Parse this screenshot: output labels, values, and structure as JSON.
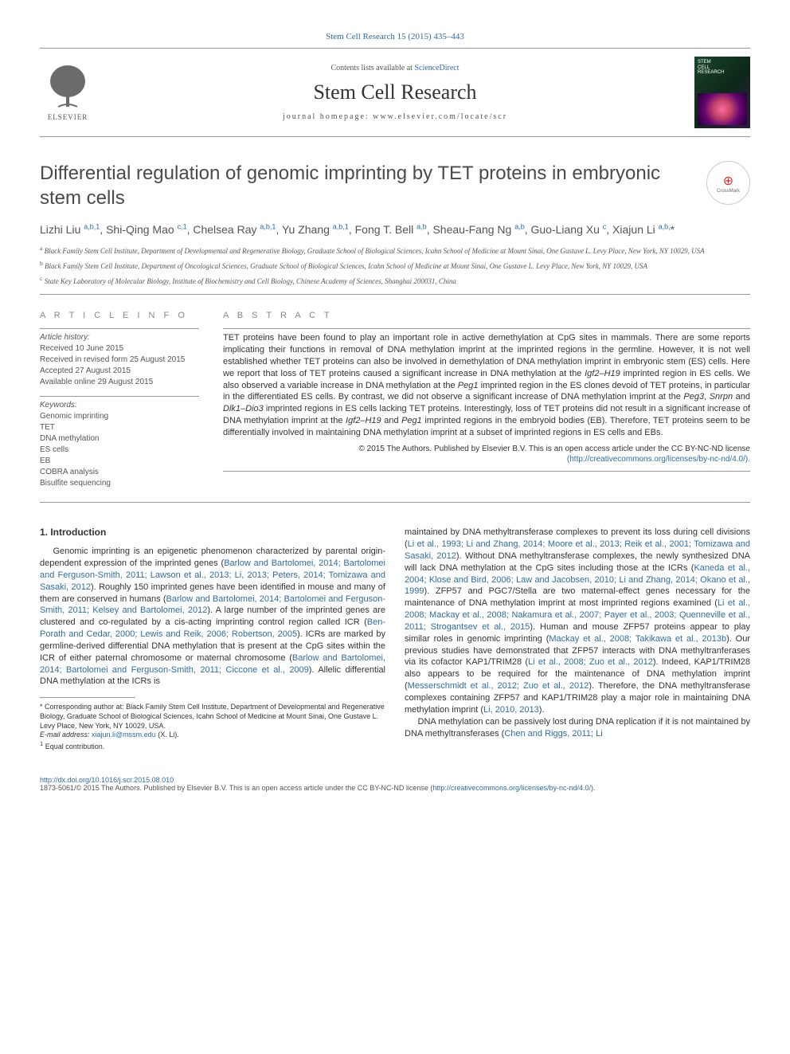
{
  "top_citation": "Stem Cell Research 15 (2015) 435–443",
  "header": {
    "contents_prefix": "Contents lists available at ",
    "contents_link": "ScienceDirect",
    "journal_title": "Stem Cell Research",
    "homepage_label": "journal homepage: www.elsevier.com/locate/scr",
    "elsevier_label": "ELSEVIER",
    "cover_lines": [
      "STEM",
      "CELL",
      "RESEARCH"
    ]
  },
  "crossmark_label": "CrossMark",
  "title": "Differential regulation of genomic imprinting by TET proteins in embryonic stem cells",
  "authors_html": "Lizhi Liu <sup><a href='#'>a,b,1</a></sup>, Shi-Qing Mao <sup><a href='#'>c,1</a></sup>, Chelsea Ray <sup><a href='#'>a,b,1</a></sup>, Yu Zhang <sup><a href='#'>a,b,1</a></sup>, Fong T. Bell <sup><a href='#'>a,b</a></sup>, Sheau-Fang Ng <sup><a href='#'>a,b</a></sup>, Guo-Liang Xu <sup><a href='#'>c</a></sup>, Xiajun Li <sup><a href='#'>a,b,</a></sup>*",
  "affiliations": {
    "a": "Black Family Stem Cell Institute, Department of Developmental and Regenerative Biology, Graduate School of Biological Sciences, Icahn School of Medicine at Mount Sinai, One Gustave L. Levy Place, New York, NY 10029, USA",
    "b": "Black Family Stem Cell Institute, Department of Oncological Sciences, Graduate School of Biological Sciences, Icahn School of Medicine at Mount Sinai, One Gustave L. Levy Place, New York, NY 10029, USA",
    "c": "State Key Laboratory of Molecular Biology, Institute of Biochemistry and Cell Biology, Chinese Academy of Sciences, Shanghai 200031, China"
  },
  "article_info": {
    "label": "A R T I C L E   I N F O",
    "history_label": "Article history:",
    "received": "Received 10 June 2015",
    "revised": "Received in revised form 25 August 2015",
    "accepted": "Accepted 27 August 2015",
    "online": "Available online 29 August 2015",
    "keywords_label": "Keywords:",
    "keywords": [
      "Genomic imprinting",
      "TET",
      "DNA methylation",
      "ES cells",
      "EB",
      "COBRA analysis",
      "Bisulfite sequencing"
    ]
  },
  "abstract": {
    "label": "A B S T R A C T",
    "text": "TET proteins have been found to play an important role in active demethylation at CpG sites in mammals. There are some reports implicating their functions in removal of DNA methylation imprint at the imprinted regions in the germline. However, it is not well established whether TET proteins can also be involved in demethylation of DNA methylation imprint in embryonic stem (ES) cells. Here we report that loss of TET proteins caused a significant increase in DNA methylation at the Igf2–H19 imprinted region in ES cells. We also observed a variable increase in DNA methylation at the Peg1 imprinted region in the ES clones devoid of TET proteins, in particular in the differentiated ES cells. By contrast, we did not observe a significant increase of DNA methylation imprint at the Peg3, Snrpn and Dlk1–Dio3 imprinted regions in ES cells lacking TET proteins. Interestingly, loss of TET proteins did not result in a significant increase of DNA methylation imprint at the Igf2–H19 and Peg1 imprinted regions in the embryoid bodies (EB). Therefore, TET proteins seem to be differentially involved in maintaining DNA methylation imprint at a subset of imprinted regions in ES cells and EBs.",
    "copyright": "© 2015 The Authors. Published by Elsevier B.V. This is an open access article under the CC BY-NC-ND license",
    "license_url_text": "(http://creativecommons.org/licenses/by-nc-nd/4.0/).",
    "license_url": "http://creativecommons.org/licenses/by-nc-nd/4.0/"
  },
  "intro": {
    "heading": "1. Introduction",
    "p1_pre": "Genomic imprinting is an epigenetic phenomenon characterized by parental origin-dependent expression of the imprinted genes (",
    "p1_link1": "Barlow and Bartolomei, 2014; Bartolomei and Ferguson-Smith, 2011; Lawson et al., 2013; Li, 2013; Peters, 2014; Tomizawa and Sasaki, 2012",
    "p1_mid1": "). Roughly 150 imprinted genes have been identified in mouse and many of them are conserved in humans (",
    "p1_link2": "Barlow and Bartolomei, 2014; Bartolomei and Ferguson-Smith, 2011; Kelsey and Bartolomei, 2012",
    "p1_mid2": "). A large number of the imprinted genes are clustered and co-regulated by a cis-acting imprinting control region called ICR (",
    "p1_link3": "Ben-Porath and Cedar, 2000; Lewis and Reik, 2006; Robertson, 2005",
    "p1_mid3": "). ICRs are marked by germline-derived differential DNA methylation that is present at the CpG sites within the ICR of either paternal chromosome or maternal chromosome (",
    "p1_link4": "Barlow and Bartolomei, 2014; Bartolomei and Ferguson-Smith, 2011; Ciccone et al., 2009",
    "p1_post": "). Allelic differential DNA methylation at the ICRs is",
    "p2_pre": "maintained by DNA methyltransferase complexes to prevent its loss during cell divisions (",
    "p2_link1": "Li et al., 1993; Li and Zhang, 2014; Moore et al., 2013; Reik et al., 2001; Tomizawa and Sasaki, 2012",
    "p2_mid1": "). Without DNA methyltransferase complexes, the newly synthesized DNA will lack DNA methylation at the CpG sites including those at the ICRs (",
    "p2_link2": "Kaneda et al., 2004; Klose and Bird, 2006; Law and Jacobsen, 2010; Li and Zhang, 2014; Okano et al., 1999",
    "p2_mid2": "). ZFP57 and PGC7/Stella are two maternal-effect genes necessary for the maintenance of DNA methylation imprint at most imprinted regions examined (",
    "p2_link3": "Li et al., 2008; Mackay et al., 2008; Nakamura et al., 2007; Payer et al., 2003; Quenneville et al., 2011; Strogantsev et al., 2015",
    "p2_mid3": "). Human and mouse ZFP57 proteins appear to play similar roles in genomic imprinting (",
    "p2_link4": "Mackay et al., 2008; Takikawa et al., 2013b",
    "p2_mid4": "). Our previous studies have demonstrated that ZFP57 interacts with DNA methyltranferases via its cofactor KAP1/TRIM28 (",
    "p2_link5": "Li et al., 2008; Zuo et al., 2012",
    "p2_mid5": "). Indeed, KAP1/TRIM28 also appears to be required for the maintenance of DNA methylation imprint (",
    "p2_link6": "Messerschmidt et al., 2012; Zuo et al., 2012",
    "p2_mid6": "). Therefore, the DNA methyltransferase complexes containing ZFP57 and KAP1/TRIM28 play a major role in maintaining DNA methylation imprint (",
    "p2_link7": "Li, 2010, 2013",
    "p2_post": ").",
    "p3_pre": "DNA methylation can be passively lost during DNA replication if it is not maintained by DNA methyltransferases (",
    "p3_link1": "Chen and Riggs, 2011; Li"
  },
  "footnotes": {
    "corresponding": "* Corresponding author at: Black Family Stem Cell Institute, Department of Developmental and Regenerative Biology, Graduate School of Biological Sciences, Icahn School of Medicine at Mount Sinai, One Gustave L. Levy Place, New York, NY 10029, USA.",
    "email_label": "E-mail address: ",
    "email": "xiajun.li@mssm.edu",
    "email_name": " (X. Li).",
    "equal": "Equal contribution."
  },
  "footer": {
    "doi": "http://dx.doi.org/10.1016/j.scr.2015.08.010",
    "issn_line": "1873-5061/© 2015 The Authors. Published by Elsevier B.V. This is an open access article under the CC BY-NC-ND license (",
    "license_url_text": "http://creativecommons.org/licenses/by-nc-nd/4.0/",
    "close": ")."
  },
  "colors": {
    "link": "#2e6da4",
    "text": "#333333",
    "muted": "#555555"
  }
}
